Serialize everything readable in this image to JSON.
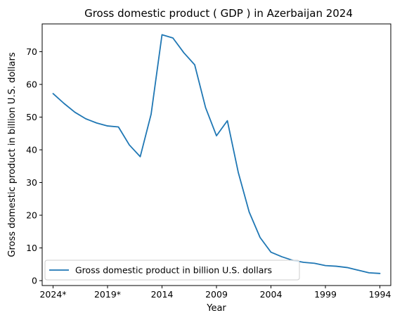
{
  "chart_data": {
    "type": "line",
    "title": "Gross domestic product ( GDP ) in Azerbaijan 2024",
    "xlabel": "Year",
    "ylabel": "Gross domestic product in billion U.S. dollars",
    "x": [
      "2024*",
      "2023*",
      "2022*",
      "2021*",
      "2020*",
      "2019*",
      "2018*",
      "2017",
      "2016",
      "2015",
      "2014",
      "2013",
      "2012",
      "2011",
      "2010",
      "2009",
      "2008",
      "2007",
      "2006",
      "2005",
      "2004",
      "2003",
      "2002",
      "2001",
      "2000",
      "1999",
      "1998",
      "1997",
      "1996",
      "1995",
      "1994"
    ],
    "x_tick_labels": [
      "2024*",
      "2019*",
      "2014",
      "2009",
      "2004",
      "1999",
      "1994"
    ],
    "y_ticks": [
      "0",
      "10",
      "20",
      "30",
      "40",
      "50",
      "60",
      "70"
    ],
    "ylim": [
      -1.5,
      78.5
    ],
    "series": [
      {
        "name": "Gross domestic product in billion U.S. dollars",
        "color": "#1f77b4",
        "values": [
          57.2,
          54.2,
          51.5,
          49.5,
          48.2,
          47.3,
          47.0,
          41.5,
          37.9,
          50.9,
          75.2,
          74.2,
          69.7,
          66.0,
          52.9,
          44.3,
          48.9,
          33.1,
          21.0,
          13.2,
          8.7,
          7.3,
          6.2,
          5.6,
          5.3,
          4.6,
          4.4,
          4.0,
          3.2,
          2.4,
          2.2
        ]
      }
    ],
    "grid": false,
    "legend_position": "lower-left"
  }
}
